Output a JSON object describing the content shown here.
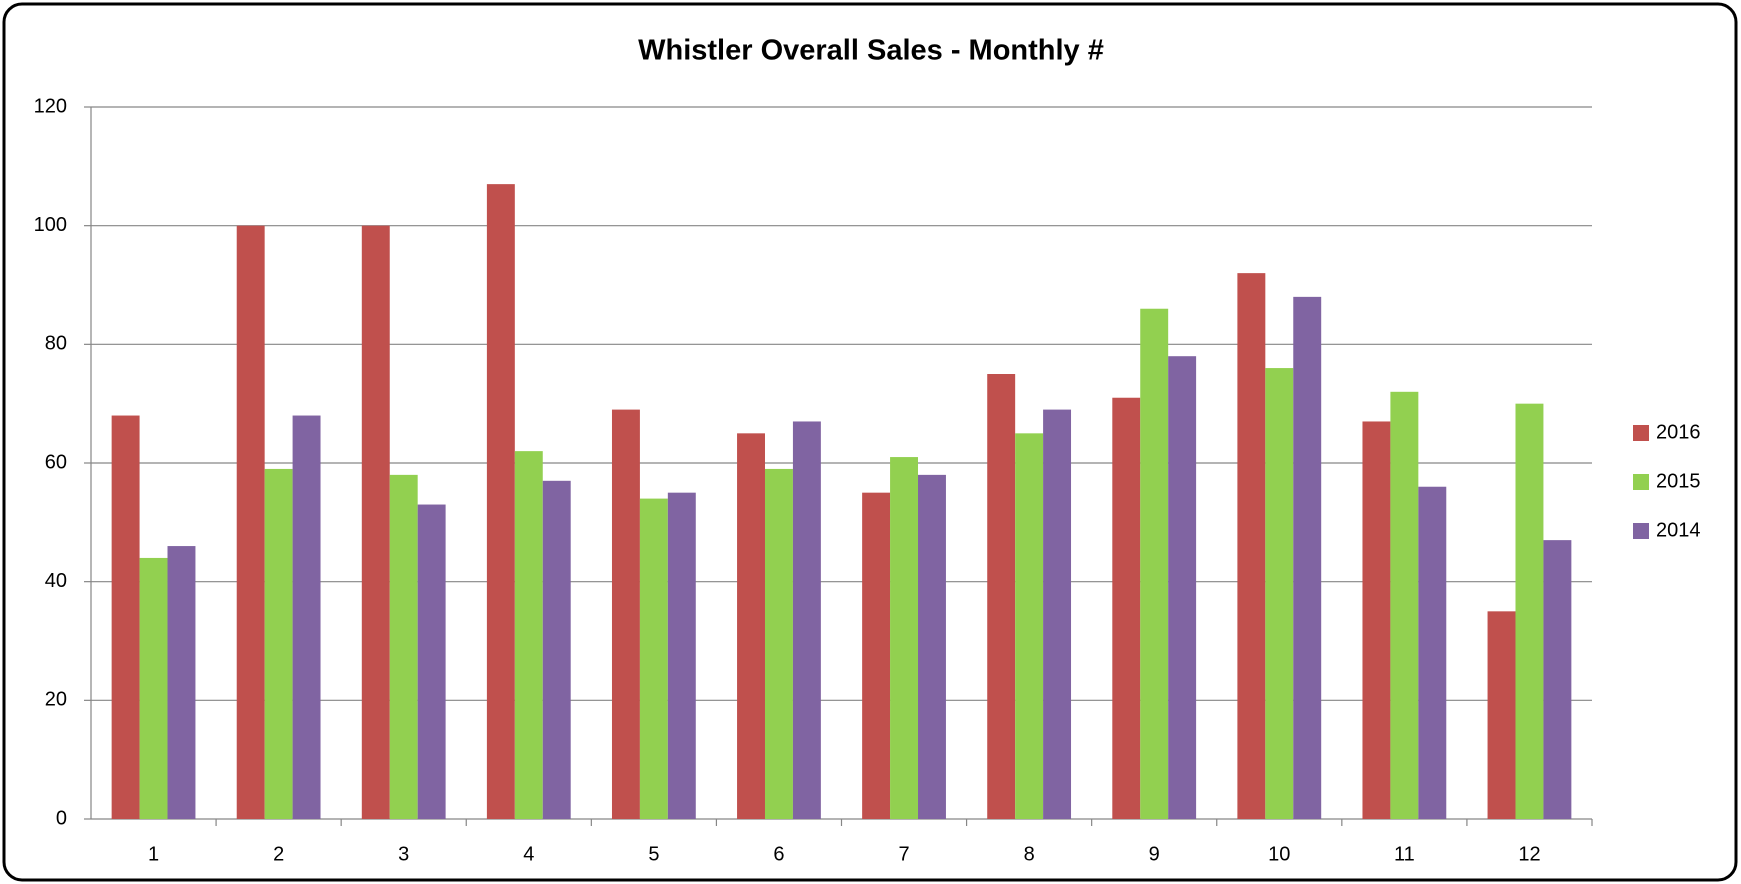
{
  "chart_data": {
    "type": "bar",
    "title": "Whistler Overall Sales - Monthly #",
    "categories": [
      "1",
      "2",
      "3",
      "4",
      "5",
      "6",
      "7",
      "8",
      "9",
      "10",
      "11",
      "12"
    ],
    "series": [
      {
        "name": "2016",
        "color": "#c0504d",
        "values": [
          68,
          100,
          100,
          107,
          69,
          65,
          55,
          75,
          71,
          92,
          67,
          35
        ]
      },
      {
        "name": "2015",
        "color": "#92d050",
        "values": [
          44,
          59,
          58,
          62,
          54,
          59,
          61,
          65,
          86,
          76,
          72,
          70
        ]
      },
      {
        "name": "2014",
        "color": "#8064a2",
        "values": [
          46,
          68,
          53,
          57,
          55,
          67,
          58,
          69,
          78,
          88,
          56,
          47
        ]
      }
    ],
    "ylim": [
      0,
      120
    ],
    "yticks": [
      0,
      20,
      40,
      60,
      80,
      100,
      120
    ],
    "grid": true,
    "legend": "right"
  }
}
